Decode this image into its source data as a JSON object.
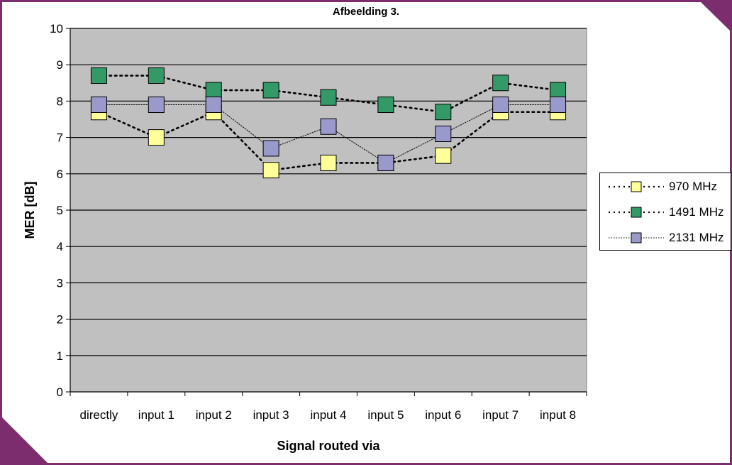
{
  "figure_label": "Afbeelding 3.",
  "colors": {
    "frame": "#7b2d6e",
    "plot_background": "#c0c0c0",
    "grid": "#000000"
  },
  "chart_data": {
    "type": "line",
    "title": "",
    "xlabel": "Signal routed via",
    "ylabel": "MER [dB]",
    "categories": [
      "directly",
      "input 1",
      "input 2",
      "input 3",
      "input 4",
      "input 5",
      "input 6",
      "input 7",
      "input 8"
    ],
    "ylim": [
      0,
      10
    ],
    "yticks": [
      "0",
      "1",
      "2",
      "3",
      "4",
      "5",
      "6",
      "7",
      "8",
      "9",
      "10"
    ],
    "grid": true,
    "legend_position": "right",
    "series": [
      {
        "name": "970 MHz",
        "values": [
          7.7,
          7.0,
          7.7,
          6.1,
          6.3,
          6.3,
          6.5,
          7.7,
          7.7
        ],
        "color": "#ffff99",
        "line_style": "dotted-thick"
      },
      {
        "name": "1491 MHz",
        "values": [
          8.7,
          8.7,
          8.3,
          8.3,
          8.1,
          7.9,
          7.7,
          8.5,
          8.3
        ],
        "color": "#339966",
        "line_style": "dotted-thick"
      },
      {
        "name": "2131 MHz",
        "values": [
          7.9,
          7.9,
          7.9,
          6.7,
          7.3,
          6.3,
          7.1,
          7.9,
          7.9
        ],
        "color": "#9999cc",
        "line_style": "dotted-thin"
      }
    ]
  }
}
